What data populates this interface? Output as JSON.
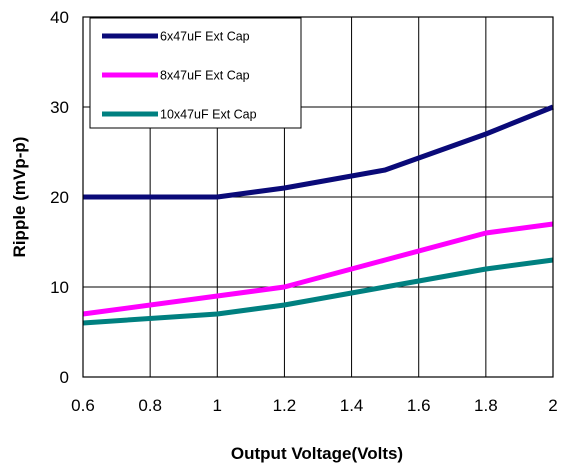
{
  "chart_data": {
    "type": "line",
    "title": "",
    "xlabel": "Output Voltage(Volts)",
    "ylabel": "Ripple (mVp-p)",
    "xlim": [
      0.6,
      2
    ],
    "ylim": [
      0,
      40
    ],
    "x_ticks": [
      "0.6",
      "0.8",
      "1",
      "1.2",
      "1.4",
      "1.6",
      "1.8",
      "2"
    ],
    "y_ticks": [
      "0",
      "10",
      "20",
      "30",
      "40"
    ],
    "grid": true,
    "legend_position": "top-left",
    "x": [
      0.6,
      1.0,
      1.2,
      1.5,
      1.8,
      2.0
    ],
    "series": [
      {
        "name": "6x47uF Ext Cap",
        "color": "#0a0a78",
        "values": [
          20,
          20,
          21,
          23,
          27,
          30
        ]
      },
      {
        "name": "8x47uF Ext Cap",
        "color": "#ff00ff",
        "values": [
          7,
          9,
          10,
          13,
          16,
          17
        ]
      },
      {
        "name": "10x47uF Ext Cap",
        "color": "#008080",
        "values": [
          6,
          7,
          8,
          10,
          12,
          13
        ]
      }
    ]
  }
}
